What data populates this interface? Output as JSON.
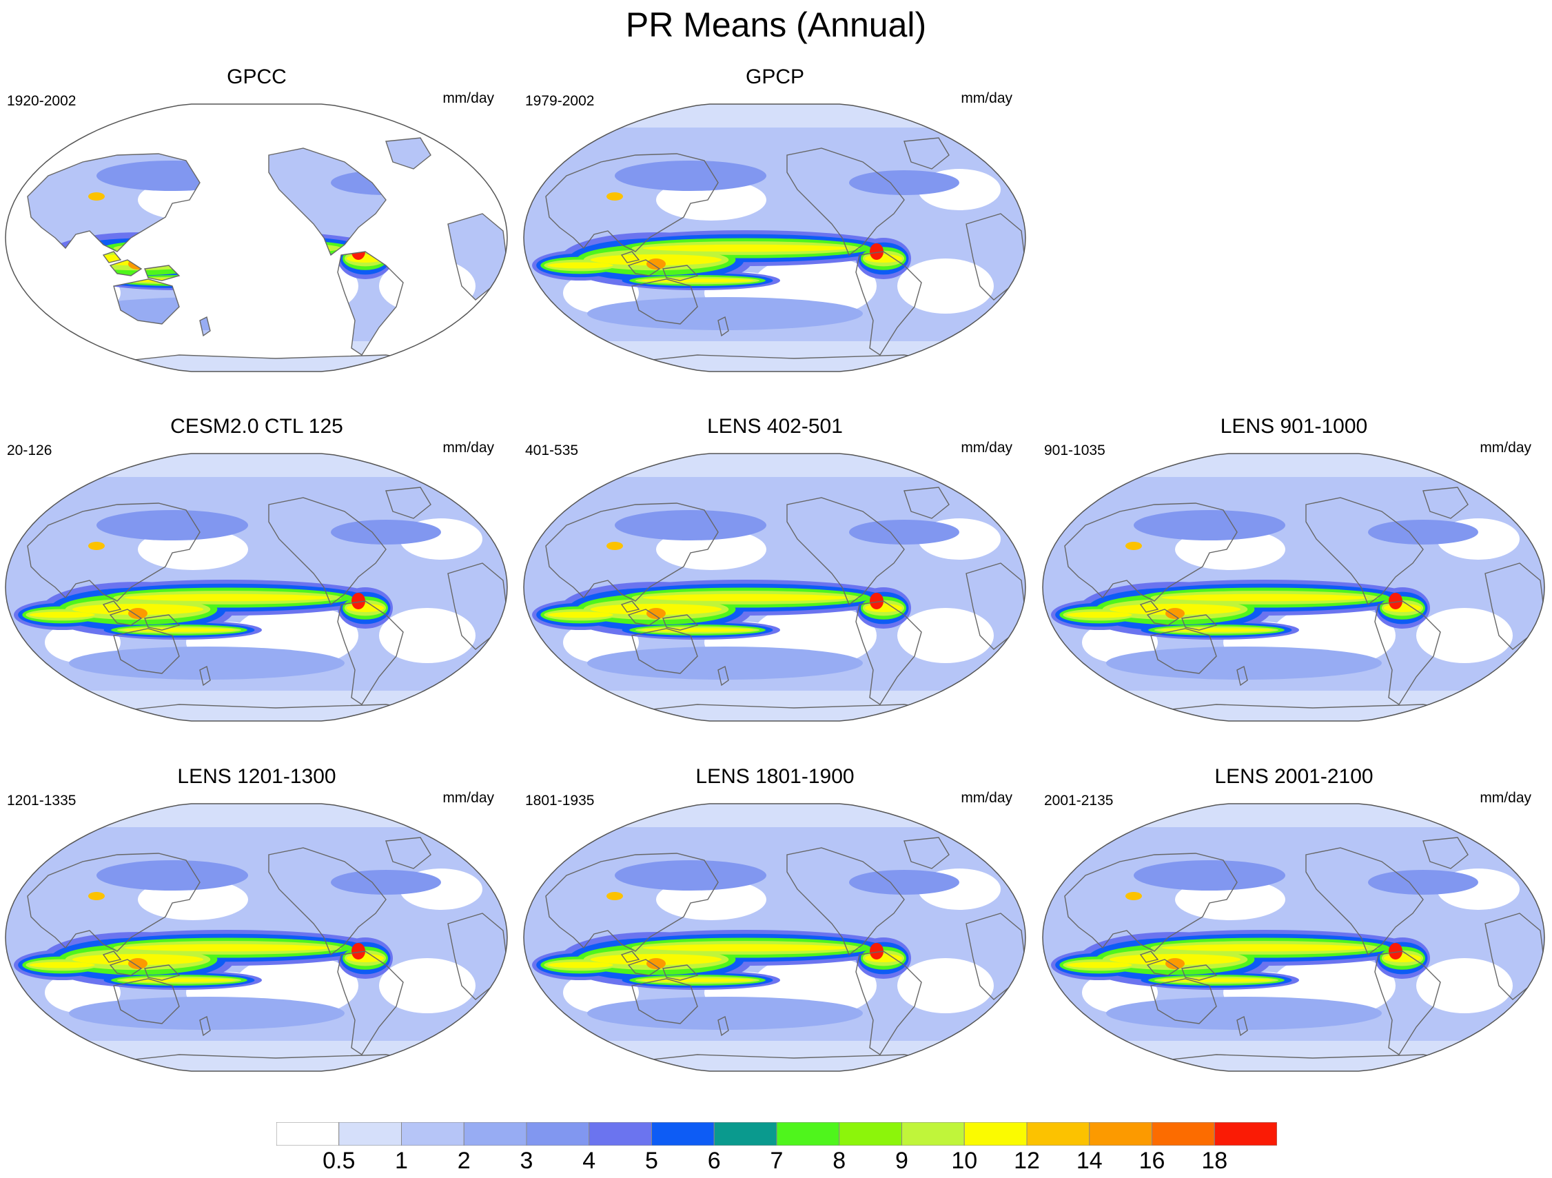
{
  "title": "PR Means (Annual)",
  "panels": [
    {
      "title": "GPCC",
      "period": "1920-2002",
      "units": "mm/day",
      "land_only": true
    },
    {
      "title": "GPCP",
      "period": "1979-2002",
      "units": "mm/day",
      "land_only": false
    },
    {
      "title": "CESM2.0 CTL 125",
      "period": "20-126",
      "units": "mm/day",
      "land_only": false
    },
    {
      "title": "LENS 402-501",
      "period": "401-535",
      "units": "mm/day",
      "land_only": false
    },
    {
      "title": "LENS 901-1000",
      "period": "901-1035",
      "units": "mm/day",
      "land_only": false
    },
    {
      "title": "LENS 1201-1300",
      "period": "1201-1335",
      "units": "mm/day",
      "land_only": false
    },
    {
      "title": "LENS 1801-1900",
      "period": "1801-1935",
      "units": "mm/day",
      "land_only": false
    },
    {
      "title": "LENS 2001-2100",
      "period": "2001-2135",
      "units": "mm/day",
      "land_only": false
    }
  ],
  "colorbar": {
    "labels": [
      "0.5",
      "1",
      "2",
      "3",
      "4",
      "5",
      "6",
      "7",
      "8",
      "9",
      "10",
      "12",
      "14",
      "16",
      "18"
    ],
    "colors": [
      "#ffffff",
      "#d5dffa",
      "#b6c5f7",
      "#97acf3",
      "#8197f0",
      "#6b74ef",
      "#0d5cf5",
      "#0a9a8e",
      "#4ff51c",
      "#8cf50a",
      "#c0f53a",
      "#fbfb00",
      "#fcc200",
      "#fc9a00",
      "#fc6c00",
      "#fa1b05"
    ]
  }
}
